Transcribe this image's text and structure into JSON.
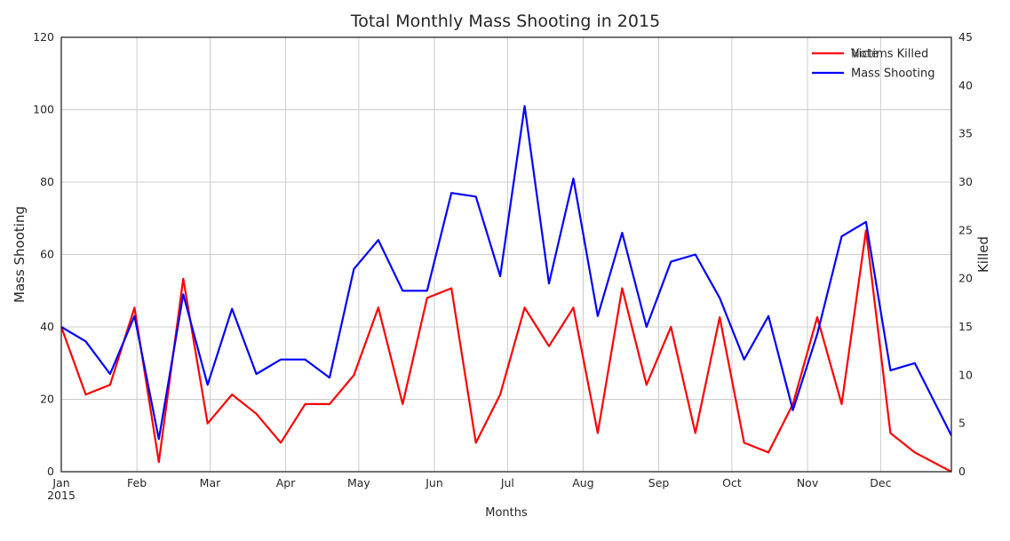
{
  "chart_data": {
    "type": "line",
    "title": "Total Monthly Mass Shooting in 2015",
    "xlabel": "Months",
    "ylabel_left": "Mass Shooting",
    "ylabel_right": "Killed",
    "ylim_left": [
      0,
      120
    ],
    "ylim_right": [
      0,
      45
    ],
    "yticks_left": [
      "0",
      "20",
      "40",
      "60",
      "80",
      "100",
      "120"
    ],
    "yticks_right": [
      "0",
      "5",
      "10",
      "15",
      "20",
      "25",
      "30",
      "35",
      "40",
      "45"
    ],
    "xlim": [
      0,
      36.5
    ],
    "xticks": [
      {
        "x": 0,
        "label": "Jan",
        "sublabel": "2015"
      },
      {
        "x": 3.1,
        "label": "Feb",
        "sublabel": ""
      },
      {
        "x": 6.1,
        "label": "Mar",
        "sublabel": ""
      },
      {
        "x": 9.2,
        "label": "Apr",
        "sublabel": ""
      },
      {
        "x": 12.2,
        "label": "May",
        "sublabel": ""
      },
      {
        "x": 15.3,
        "label": "Jun",
        "sublabel": ""
      },
      {
        "x": 18.3,
        "label": "Jul",
        "sublabel": ""
      },
      {
        "x": 21.4,
        "label": "Aug",
        "sublabel": ""
      },
      {
        "x": 24.5,
        "label": "Sep",
        "sublabel": ""
      },
      {
        "x": 27.5,
        "label": "Oct",
        "sublabel": ""
      },
      {
        "x": 30.6,
        "label": "Nov",
        "sublabel": ""
      },
      {
        "x": 33.6,
        "label": "Dec",
        "sublabel": ""
      }
    ],
    "legend": {
      "placement": "top-right",
      "overlapping_entries": [
        "Victims Killed",
        "Note"
      ]
    },
    "grid": true,
    "series": [
      {
        "name": "Victims Killed",
        "axis": "right",
        "color": "#ff0000",
        "x": [
          0,
          1,
          2,
          3,
          4,
          5,
          6,
          7,
          8,
          9,
          10,
          11,
          12,
          13,
          14,
          15,
          16,
          17,
          18,
          19,
          20,
          21,
          22,
          23,
          24,
          25,
          26,
          27,
          28,
          29,
          30,
          31,
          32,
          33,
          34,
          35,
          36.5
        ],
        "values": [
          15,
          8,
          9,
          17,
          1,
          20,
          5,
          8,
          6,
          3,
          7,
          7,
          10,
          17,
          7,
          18,
          19,
          3,
          8,
          17,
          13,
          17,
          4,
          19,
          9,
          15,
          4,
          16,
          3,
          2,
          7,
          16,
          7,
          25,
          4,
          2,
          0
        ]
      },
      {
        "name": "Mass Shooting",
        "axis": "left",
        "color": "#0000ff",
        "x": [
          0,
          1,
          2,
          3,
          4,
          5,
          6,
          7,
          8,
          9,
          10,
          11,
          12,
          13,
          14,
          15,
          16,
          17,
          18,
          19,
          20,
          21,
          22,
          23,
          24,
          25,
          26,
          27,
          28,
          29,
          30,
          31,
          32,
          33,
          34,
          35,
          36.5
        ],
        "values": [
          40,
          36,
          27,
          43,
          9,
          49,
          24,
          45,
          27,
          31,
          31,
          26,
          56,
          64,
          50,
          50,
          77,
          76,
          54,
          101,
          52,
          81,
          43,
          66,
          40,
          58,
          60,
          48,
          31,
          43,
          17,
          38,
          65,
          69,
          28,
          30,
          10
        ]
      }
    ]
  }
}
